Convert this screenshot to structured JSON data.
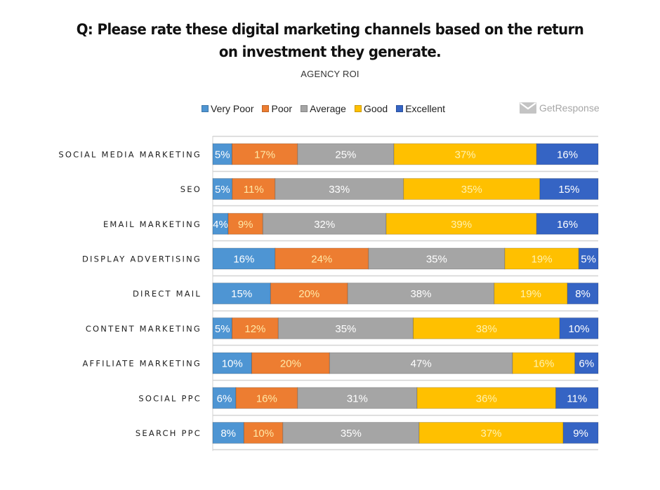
{
  "header": {
    "title_line1": "Q: Please rate these digital marketing channels based on the return",
    "title_line2": "on investment they generate.",
    "subtitle": "AGENCY ROI"
  },
  "brand": {
    "name": "GetResponse",
    "icon": "envelope-icon",
    "color": "#a6a6a6"
  },
  "chart_data": {
    "type": "bar",
    "orientation": "horizontal",
    "stacked": "100%",
    "title": "Q: Please rate these digital marketing channels based on the return on investment they generate.",
    "subtitle": "AGENCY ROI",
    "xlabel": "",
    "ylabel": "",
    "xlim": [
      0,
      100
    ],
    "grid": true,
    "legend_position": "top",
    "categories": [
      "SOCIAL MEDIA MARKETING",
      "SEO",
      "EMAIL MARKETING",
      "DISPLAY ADVERTISING",
      "DIRECT MAIL",
      "CONTENT MARKETING",
      "AFFILIATE MARKETING",
      "SOCIAL PPC",
      "SEARCH PPC"
    ],
    "series": [
      {
        "name": "Very Poor",
        "color": "#4e95d3",
        "text_color": "#ffffff",
        "values": [
          5,
          5,
          4,
          16,
          15,
          5,
          10,
          6,
          8
        ]
      },
      {
        "name": "Poor",
        "color": "#ed7d31",
        "text_color": "#ffe9a8",
        "values": [
          17,
          11,
          9,
          24,
          20,
          12,
          20,
          16,
          10
        ]
      },
      {
        "name": "Average",
        "color": "#a5a5a5",
        "text_color": "#ffffff",
        "values": [
          25,
          33,
          32,
          35,
          38,
          35,
          47,
          31,
          35
        ]
      },
      {
        "name": "Good",
        "color": "#ffc000",
        "text_color": "#fff2b0",
        "values": [
          37,
          35,
          39,
          19,
          19,
          38,
          16,
          36,
          37
        ]
      },
      {
        "name": "Excellent",
        "color": "#3564c4",
        "text_color": "#ffffff",
        "values": [
          16,
          15,
          16,
          5,
          8,
          10,
          6,
          11,
          9
        ]
      }
    ],
    "value_suffix": "%"
  }
}
